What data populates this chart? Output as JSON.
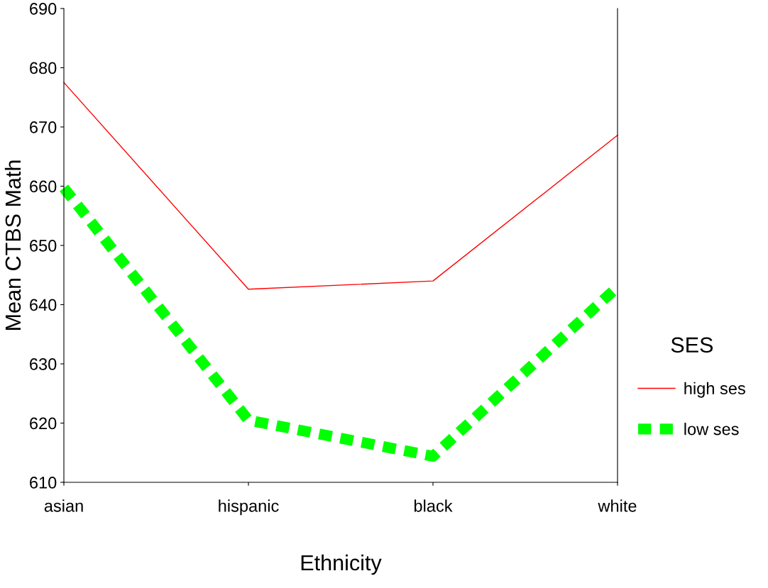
{
  "chart_data": {
    "type": "line",
    "xlabel": "Ethnicity",
    "ylabel": "Mean CTBS Math",
    "legend_title": "SES",
    "categories": [
      "asian",
      "hispanic",
      "black",
      "white"
    ],
    "series": [
      {
        "name": "high ses",
        "color": "#ff0000",
        "line_style": "solid",
        "values": [
          677.5,
          642.6,
          644.0,
          668.6
        ]
      },
      {
        "name": "low ses",
        "color": "#00ff00",
        "line_style": "dashed",
        "values": [
          659.7,
          620.5,
          614.4,
          643.0
        ]
      }
    ],
    "ylim": [
      610,
      690
    ],
    "yticks": [
      610,
      620,
      630,
      640,
      650,
      660,
      670,
      680,
      690
    ],
    "grid": false,
    "legend": "right",
    "marker": "none"
  }
}
